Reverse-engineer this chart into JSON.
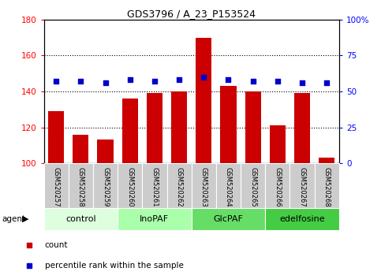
{
  "title": "GDS3796 / A_23_P153524",
  "samples": [
    "GSM520257",
    "GSM520258",
    "GSM520259",
    "GSM520260",
    "GSM520261",
    "GSM520262",
    "GSM520263",
    "GSM520264",
    "GSM520265",
    "GSM520266",
    "GSM520267",
    "GSM520268"
  ],
  "bar_values": [
    129,
    116,
    113,
    136,
    139,
    140,
    170,
    143,
    140,
    121,
    139,
    103
  ],
  "percentile_values": [
    57,
    57,
    56,
    58,
    57,
    58,
    60,
    58,
    57,
    57,
    56,
    56
  ],
  "bar_bottom": 100,
  "ylim_left": [
    100,
    180
  ],
  "ylim_right": [
    0,
    100
  ],
  "yticks_left": [
    100,
    120,
    140,
    160,
    180
  ],
  "yticks_right": [
    0,
    25,
    50,
    75,
    100
  ],
  "ytick_labels_right": [
    "0",
    "25",
    "50",
    "75",
    "100%"
  ],
  "bar_color": "#cc0000",
  "dot_color": "#0000cc",
  "groups": [
    {
      "label": "control",
      "start": 0,
      "end": 3,
      "color": "#ddffd d"
    },
    {
      "label": "InoPAF",
      "start": 3,
      "end": 6,
      "color": "#aaeea a"
    },
    {
      "label": "GlcPAF",
      "start": 6,
      "end": 9,
      "color": "#66dd66"
    },
    {
      "label": "edelfosine",
      "start": 9,
      "end": 12,
      "color": "#44cc44"
    }
  ],
  "agent_label": "agent",
  "legend_count_label": "count",
  "legend_pct_label": "percentile rank within the sample",
  "background_color": "#ffffff",
  "sample_box_color": "#cccccc"
}
